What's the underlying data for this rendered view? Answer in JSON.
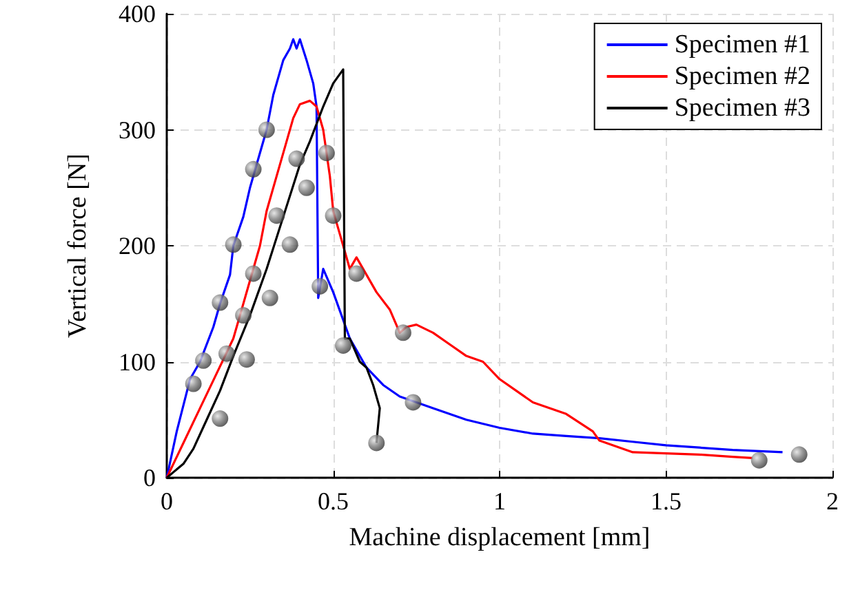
{
  "chart_data": {
    "type": "line",
    "xlabel": "Machine displacement [mm]",
    "ylabel": "Vertical force [N]",
    "xlim": [
      0,
      2
    ],
    "xticks": [
      0,
      0.5,
      1,
      1.5,
      2
    ],
    "ylim": [
      0,
      400
    ],
    "yticks": [
      0,
      100,
      200,
      300,
      400
    ],
    "grid": true,
    "legend": "top right",
    "marker": "none",
    "line_style": "solid",
    "series": [
      {
        "name": "Specimen #1",
        "color": "#0000ff",
        "x": [
          0,
          0.03,
          0.07,
          0.1,
          0.14,
          0.16,
          0.19,
          0.2,
          0.23,
          0.25,
          0.27,
          0.3,
          0.32,
          0.35,
          0.37,
          0.38,
          0.39,
          0.4,
          0.42,
          0.44,
          0.45,
          0.455,
          0.47,
          0.5,
          0.55,
          0.6,
          0.65,
          0.7,
          0.75,
          0.8,
          0.9,
          1.0,
          1.1,
          1.2,
          1.3,
          1.4,
          1.5,
          1.6,
          1.7,
          1.85
        ],
        "values": [
          0,
          40,
          85,
          100,
          130,
          150,
          175,
          200,
          225,
          250,
          270,
          300,
          330,
          360,
          370,
          378,
          370,
          378,
          360,
          340,
          320,
          155,
          180,
          160,
          120,
          95,
          80,
          70,
          65,
          60,
          50,
          43,
          38,
          36,
          34,
          31,
          28,
          26,
          24,
          22
        ]
      },
      {
        "name": "Specimen #2",
        "color": "#ff0000",
        "x": [
          0,
          0.05,
          0.1,
          0.15,
          0.2,
          0.22,
          0.25,
          0.28,
          0.3,
          0.33,
          0.36,
          0.38,
          0.4,
          0.43,
          0.45,
          0.47,
          0.49,
          0.5,
          0.52,
          0.55,
          0.57,
          0.6,
          0.63,
          0.67,
          0.7,
          0.72,
          0.75,
          0.8,
          0.85,
          0.9,
          0.95,
          1.0,
          1.05,
          1.1,
          1.2,
          1.28,
          1.3,
          1.4,
          1.5,
          1.6,
          1.7,
          1.76
        ],
        "values": [
          0,
          30,
          60,
          90,
          120,
          140,
          170,
          200,
          230,
          260,
          290,
          310,
          322,
          325,
          320,
          300,
          260,
          230,
          210,
          180,
          190,
          175,
          160,
          145,
          125,
          130,
          132,
          125,
          115,
          105,
          100,
          85,
          75,
          65,
          55,
          40,
          32,
          22,
          21,
          20,
          18,
          17
        ]
      },
      {
        "name": "Specimen #3",
        "color": "#000000",
        "x": [
          0,
          0.05,
          0.08,
          0.12,
          0.16,
          0.2,
          0.25,
          0.3,
          0.35,
          0.4,
          0.43,
          0.47,
          0.5,
          0.53,
          0.535,
          0.55,
          0.58,
          0.6,
          0.62,
          0.64,
          0.63
        ],
        "values": [
          0,
          12,
          25,
          50,
          75,
          105,
          140,
          180,
          225,
          270,
          290,
          320,
          340,
          352,
          120,
          120,
          100,
          95,
          80,
          60,
          30
        ]
      },
      {
        "type": "scatter",
        "marker": "circle",
        "color": "#808080",
        "x": [
          0.08,
          0.11,
          0.16,
          0.16,
          0.18,
          0.2,
          0.23,
          0.24,
          0.26,
          0.3,
          0.26,
          0.31,
          0.33,
          0.37,
          0.39,
          0.42,
          0.46,
          0.48,
          0.5,
          0.53,
          0.57,
          0.63,
          0.71,
          0.74,
          1.78,
          1.9
        ],
        "values": [
          81,
          101,
          51,
          151,
          107,
          201,
          140,
          102,
          176,
          300,
          266,
          155,
          226,
          201,
          275,
          250,
          165,
          280,
          226,
          114,
          176,
          30,
          125,
          65,
          15,
          20
        ]
      }
    ]
  }
}
